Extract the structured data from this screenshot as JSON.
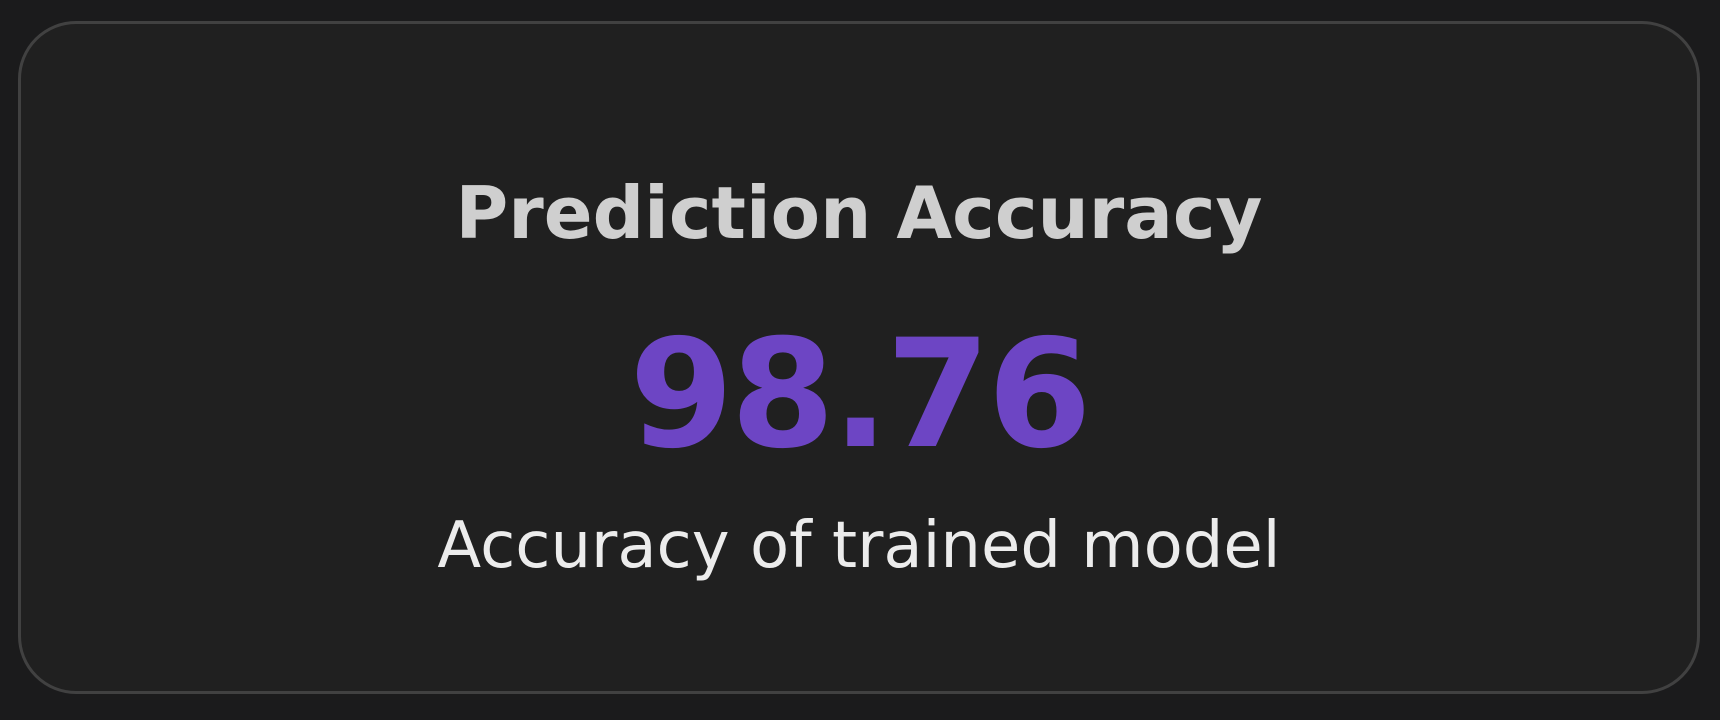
{
  "card": {
    "title": "Prediction Accuracy",
    "value": "98.76",
    "subtitle": "Accuracy of trained model"
  },
  "colors": {
    "page_background": "#1b1b1c",
    "card_background": "#202020",
    "card_border": "#414141",
    "title": "#cfcfcf",
    "value": "#6d45c4",
    "subtitle": "#ececec"
  }
}
